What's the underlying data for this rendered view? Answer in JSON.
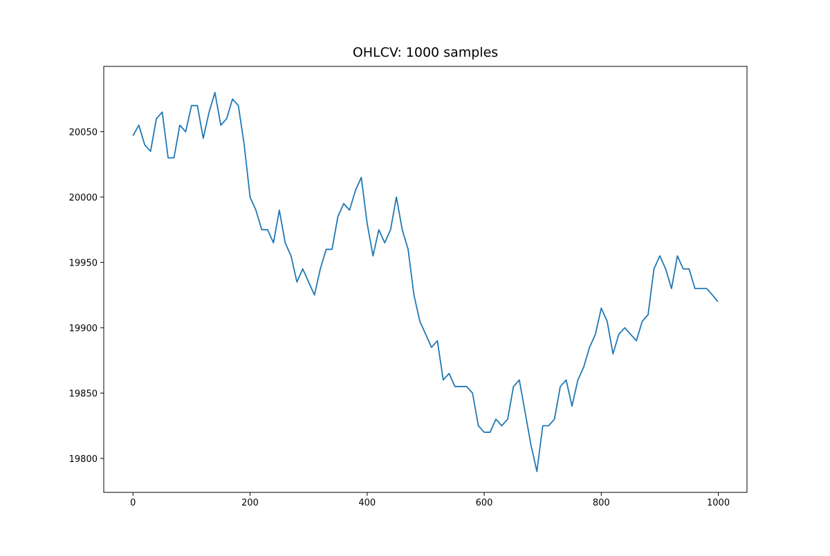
{
  "chart_data": {
    "type": "line",
    "title": "OHLCV: 1000 samples",
    "x": [
      0,
      10,
      20,
      30,
      40,
      50,
      60,
      70,
      80,
      90,
      100,
      110,
      120,
      130,
      140,
      150,
      160,
      170,
      180,
      190,
      200,
      210,
      220,
      230,
      240,
      250,
      260,
      270,
      280,
      290,
      300,
      310,
      320,
      330,
      340,
      350,
      360,
      370,
      380,
      390,
      400,
      410,
      420,
      430,
      440,
      450,
      460,
      470,
      480,
      490,
      500,
      510,
      520,
      530,
      540,
      550,
      560,
      570,
      580,
      590,
      600,
      610,
      620,
      630,
      640,
      650,
      660,
      670,
      680,
      690,
      700,
      710,
      720,
      730,
      740,
      750,
      760,
      770,
      780,
      790,
      800,
      810,
      820,
      830,
      840,
      850,
      860,
      870,
      880,
      890,
      900,
      910,
      920,
      930,
      940,
      950,
      960,
      970,
      980,
      990,
      999
    ],
    "series": [
      {
        "color": "#1f77b4",
        "values": [
          20047,
          20055,
          20040,
          20035,
          20060,
          20065,
          20030,
          20030,
          20055,
          20050,
          20070,
          20070,
          20045,
          20065,
          20080,
          20055,
          20060,
          20075,
          20070,
          20040,
          20000,
          19990,
          19975,
          19975,
          19965,
          19990,
          19965,
          19955,
          19935,
          19945,
          19935,
          19925,
          19945,
          19960,
          19960,
          19985,
          19995,
          19990,
          20005,
          20015,
          19980,
          19955,
          19975,
          19965,
          19975,
          20000,
          19975,
          19960,
          19925,
          19905,
          19895,
          19885,
          19890,
          19860,
          19865,
          19855,
          19855,
          19855,
          19850,
          19825,
          19820,
          19820,
          19830,
          19825,
          19830,
          19855,
          19860,
          19835,
          19810,
          19790,
          19825,
          19825,
          19830,
          19855,
          19860,
          19840,
          19860,
          19870,
          19885,
          19895,
          19915,
          19905,
          19880,
          19895,
          19900,
          19895,
          19890,
          19905,
          19910,
          19945,
          19955,
          19945,
          19930,
          19955,
          19945,
          19945,
          19930,
          19930,
          19930,
          19925,
          19920
        ]
      }
    ],
    "xlim": [
      -49.95,
      1048.95
    ],
    "ylim": [
      19774,
      20100
    ],
    "xticks": [
      0,
      200,
      400,
      600,
      800,
      1000
    ],
    "yticks": [
      19800,
      19850,
      19900,
      19950,
      20000,
      20050
    ]
  }
}
